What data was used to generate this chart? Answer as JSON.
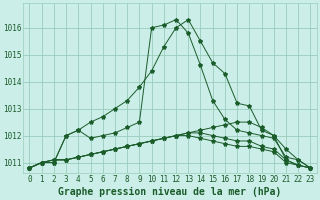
{
  "title": "Graphe pression niveau de la mer (hPa)",
  "bg_color": "#cceee8",
  "grid_color": "#99ccbb",
  "line_color": "#1a5c2a",
  "x_labels": [
    "0",
    "1",
    "2",
    "3",
    "4",
    "5",
    "6",
    "7",
    "8",
    "9",
    "10",
    "11",
    "12",
    "13",
    "14",
    "15",
    "16",
    "17",
    "18",
    "19",
    "20",
    "21",
    "22",
    "23"
  ],
  "ylim": [
    1010.6,
    1016.9
  ],
  "yticks": [
    1011,
    1012,
    1013,
    1014,
    1015,
    1016
  ],
  "series": [
    [
      1010.8,
      1011.0,
      1011.0,
      1012.0,
      1012.2,
      1012.5,
      1012.7,
      1013.0,
      1013.3,
      1013.8,
      1014.4,
      1015.3,
      1016.0,
      1016.3,
      1015.5,
      1014.7,
      1014.3,
      1013.2,
      1013.1,
      1012.2,
      1012.0,
      1011.5,
      1011.1,
      1010.8
    ],
    [
      1010.8,
      1011.0,
      1011.0,
      1012.0,
      1012.2,
      1011.9,
      1012.0,
      1012.1,
      1012.3,
      1012.5,
      1016.0,
      1016.1,
      1016.3,
      1015.8,
      1014.6,
      1013.3,
      1012.6,
      1012.2,
      1012.1,
      1012.0,
      1011.9,
      1011.2,
      1011.1,
      1010.8
    ],
    [
      1010.8,
      1011.0,
      1011.1,
      1011.1,
      1011.2,
      1011.3,
      1011.4,
      1011.5,
      1011.6,
      1011.7,
      1011.8,
      1011.9,
      1012.0,
      1012.1,
      1012.2,
      1012.3,
      1012.4,
      1012.5,
      1012.5,
      1012.3,
      1012.0,
      1011.1,
      1010.9,
      1010.8
    ],
    [
      1010.8,
      1011.0,
      1011.1,
      1011.1,
      1011.2,
      1011.3,
      1011.4,
      1011.5,
      1011.6,
      1011.7,
      1011.8,
      1011.9,
      1012.0,
      1012.1,
      1012.1,
      1012.0,
      1011.9,
      1011.8,
      1011.8,
      1011.6,
      1011.5,
      1011.1,
      1010.9,
      1010.8
    ],
    [
      1010.8,
      1011.0,
      1011.1,
      1011.1,
      1011.2,
      1011.3,
      1011.4,
      1011.5,
      1011.6,
      1011.7,
      1011.8,
      1011.9,
      1012.0,
      1012.0,
      1011.9,
      1011.8,
      1011.7,
      1011.6,
      1011.6,
      1011.5,
      1011.4,
      1011.0,
      1010.9,
      1010.8
    ]
  ],
  "marker": "*",
  "marker_size": 3.0,
  "linewidth": 0.7,
  "title_fontsize": 7,
  "tick_fontsize": 5.5
}
